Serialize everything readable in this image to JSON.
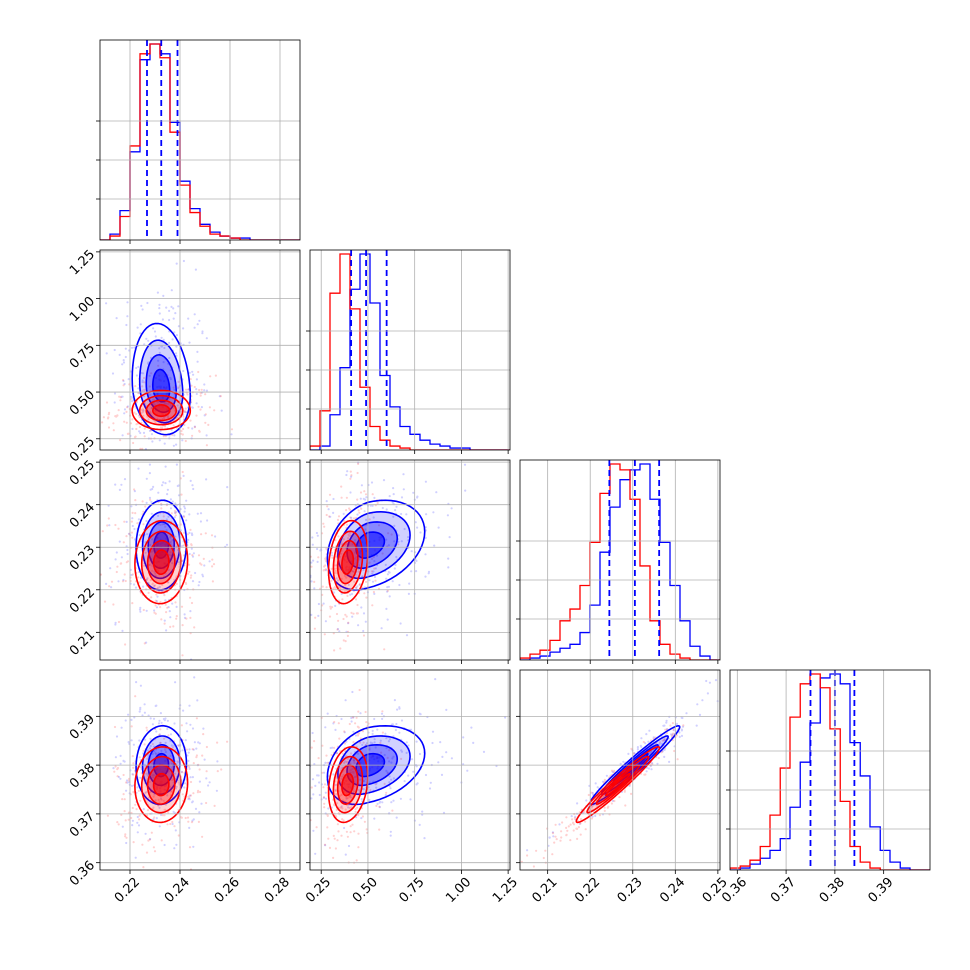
{
  "colors": {
    "series_a": "#0000ff",
    "series_b": "#ff0000",
    "grid": "#b0b0b0"
  },
  "chart_data": {
    "type": "corner",
    "grid": true,
    "quantiles_series": "blue",
    "series": [
      {
        "color": "#0000ff"
      },
      {
        "color": "#ff0000"
      }
    ],
    "parameters": [
      {
        "range": [
          0.208,
          0.288
        ],
        "ticks": [
          0.22,
          0.24,
          0.26,
          0.28
        ],
        "tick_labels": [
          "0.22",
          "0.24",
          "0.26",
          "0.28"
        ],
        "quantiles": [
          0.2268,
          0.2325,
          0.239
        ],
        "bin_edges": [
          0.208,
          0.212,
          0.216,
          0.22,
          0.224,
          0.228,
          0.232,
          0.236,
          0.24,
          0.244,
          0.248,
          0.252,
          0.256,
          0.26,
          0.264,
          0.268,
          0.272,
          0.276,
          0.28,
          0.284,
          0.288
        ],
        "hist_a": [
          0,
          0.03,
          0.15,
          0.45,
          0.92,
          1.0,
          0.95,
          0.6,
          0.3,
          0.16,
          0.08,
          0.04,
          0.02,
          0.01,
          0.01,
          0,
          0,
          0,
          0,
          0
        ],
        "hist_b": [
          0,
          0.02,
          0.12,
          0.48,
          0.95,
          1.0,
          0.93,
          0.55,
          0.28,
          0.14,
          0.07,
          0.03,
          0.02,
          0.01,
          0,
          0,
          0,
          0,
          0,
          0
        ]
      },
      {
        "range": [
          0.19,
          1.26
        ],
        "ticks": [
          0.25,
          0.5,
          0.75,
          1.0,
          1.25
        ],
        "tick_labels": [
          "0.25",
          "0.50",
          "0.75",
          "1.00",
          "1.25"
        ],
        "quantiles": [
          0.41,
          0.49,
          0.6
        ],
        "bin_edges": [
          0.19,
          0.2435,
          0.297,
          0.3505,
          0.404,
          0.4575,
          0.511,
          0.5645,
          0.618,
          0.6715,
          0.725,
          0.7785,
          0.832,
          0.8855,
          0.939,
          0.9925,
          1.046,
          1.0995,
          1.153,
          1.2065,
          1.26
        ],
        "hist_a": [
          0,
          0.02,
          0.18,
          0.42,
          0.82,
          1.0,
          0.75,
          0.38,
          0.22,
          0.12,
          0.08,
          0.05,
          0.03,
          0.02,
          0.01,
          0.01,
          0,
          0,
          0,
          0
        ],
        "hist_b": [
          0.02,
          0.2,
          0.8,
          1.0,
          0.72,
          0.32,
          0.12,
          0.05,
          0.02,
          0.01,
          0,
          0,
          0,
          0,
          0,
          0,
          0,
          0,
          0,
          0
        ]
      },
      {
        "range": [
          0.2035,
          0.2505
        ],
        "ticks": [
          0.21,
          0.22,
          0.23,
          0.24,
          0.25
        ],
        "tick_labels": [
          "0.21",
          "0.22",
          "0.23",
          "0.24",
          "0.25"
        ],
        "quantiles": [
          0.2245,
          0.2305,
          0.2362
        ],
        "bin_edges": [
          0.2035,
          0.20585,
          0.2082,
          0.21055,
          0.2129,
          0.21525,
          0.2176,
          0.21995,
          0.2223,
          0.22465,
          0.227,
          0.22935,
          0.2317,
          0.23405,
          0.2364,
          0.23875,
          0.2411,
          0.24345,
          0.2458,
          0.24815,
          0.2505
        ],
        "hist_a": [
          0,
          0.01,
          0.02,
          0.04,
          0.06,
          0.08,
          0.14,
          0.28,
          0.55,
          0.78,
          0.92,
          0.97,
          1.0,
          0.82,
          0.6,
          0.38,
          0.2,
          0.07,
          0.02,
          0
        ],
        "hist_b": [
          0.01,
          0.03,
          0.05,
          0.1,
          0.2,
          0.26,
          0.38,
          0.6,
          0.85,
          1.0,
          0.97,
          0.82,
          0.48,
          0.2,
          0.08,
          0.03,
          0.01,
          0,
          0,
          0
        ]
      },
      {
        "range": [
          0.3585,
          0.3995
        ],
        "ticks": [
          0.36,
          0.37,
          0.38,
          0.39
        ],
        "tick_labels": [
          "0.36",
          "0.37",
          "0.38",
          "0.39"
        ],
        "quantiles": [
          0.375,
          0.38,
          0.384
        ],
        "bin_edges": [
          0.3585,
          0.3606,
          0.3626,
          0.3647,
          0.3667,
          0.3688,
          0.3708,
          0.3729,
          0.3749,
          0.377,
          0.379,
          0.3811,
          0.3831,
          0.3852,
          0.3872,
          0.3893,
          0.3913,
          0.3934,
          0.3954,
          0.3975,
          0.3995
        ],
        "hist_a": [
          0,
          0.01,
          0.03,
          0.06,
          0.1,
          0.16,
          0.32,
          0.55,
          0.75,
          0.98,
          1.0,
          0.95,
          0.65,
          0.48,
          0.22,
          0.1,
          0.04,
          0.01,
          0,
          0
        ],
        "hist_b": [
          0.01,
          0.02,
          0.05,
          0.12,
          0.28,
          0.52,
          0.78,
          0.95,
          1.0,
          0.93,
          0.72,
          0.35,
          0.12,
          0.04,
          0.01,
          0,
          0,
          0,
          0,
          0
        ]
      }
    ],
    "blobs": {
      "1_0": [
        {
          "series": "a",
          "cx": 0.2325,
          "cy": 0.52,
          "sx": 0.0075,
          "sy": 0.16,
          "rho": -0.15,
          "skew_y": 0.1
        },
        {
          "series": "b",
          "cx": 0.2325,
          "cy": 0.4,
          "sx": 0.0075,
          "sy": 0.065,
          "rho": 0.0,
          "skew_y": 0.02
        }
      ],
      "2_0": [
        {
          "series": "a",
          "cx": 0.2325,
          "cy": 0.2305,
          "sx": 0.0065,
          "sy": 0.0068,
          "rho": 0.05,
          "skew_y": 0
        },
        {
          "series": "b",
          "cx": 0.2325,
          "cy": 0.2265,
          "sx": 0.0068,
          "sy": 0.0063,
          "rho": 0.05,
          "skew_y": 0
        }
      ],
      "2_1": [
        {
          "series": "a",
          "cx": 0.5,
          "cy": 0.2305,
          "sx": 0.14,
          "sy": 0.0068,
          "rho": 0.3,
          "skew_x": 0.1
        },
        {
          "series": "b",
          "cx": 0.39,
          "cy": 0.2265,
          "sx": 0.065,
          "sy": 0.0063,
          "rho": 0.2,
          "skew_x": 0.02
        }
      ],
      "3_0": [
        {
          "series": "a",
          "cx": 0.2325,
          "cy": 0.38,
          "sx": 0.0065,
          "sy": 0.0052,
          "rho": 0.05,
          "skew_y": 0
        },
        {
          "series": "b",
          "cx": 0.2325,
          "cy": 0.376,
          "sx": 0.0068,
          "sy": 0.005,
          "rho": 0.05,
          "skew_y": 0
        }
      ],
      "3_1": [
        {
          "series": "a",
          "cx": 0.5,
          "cy": 0.38,
          "sx": 0.14,
          "sy": 0.0052,
          "rho": 0.3,
          "skew_x": 0.1
        },
        {
          "series": "b",
          "cx": 0.39,
          "cy": 0.376,
          "sx": 0.065,
          "sy": 0.005,
          "rho": 0.2,
          "skew_x": 0.02
        }
      ],
      "3_2": [
        {
          "series": "a",
          "cx": 0.2305,
          "cy": 0.38,
          "sx": 0.0068,
          "sy": 0.0052,
          "rho": 0.97,
          "skew_y": 0
        },
        {
          "series": "b",
          "cx": 0.2265,
          "cy": 0.376,
          "sx": 0.0063,
          "sy": 0.005,
          "rho": 0.97,
          "skew_y": 0
        }
      ]
    }
  }
}
